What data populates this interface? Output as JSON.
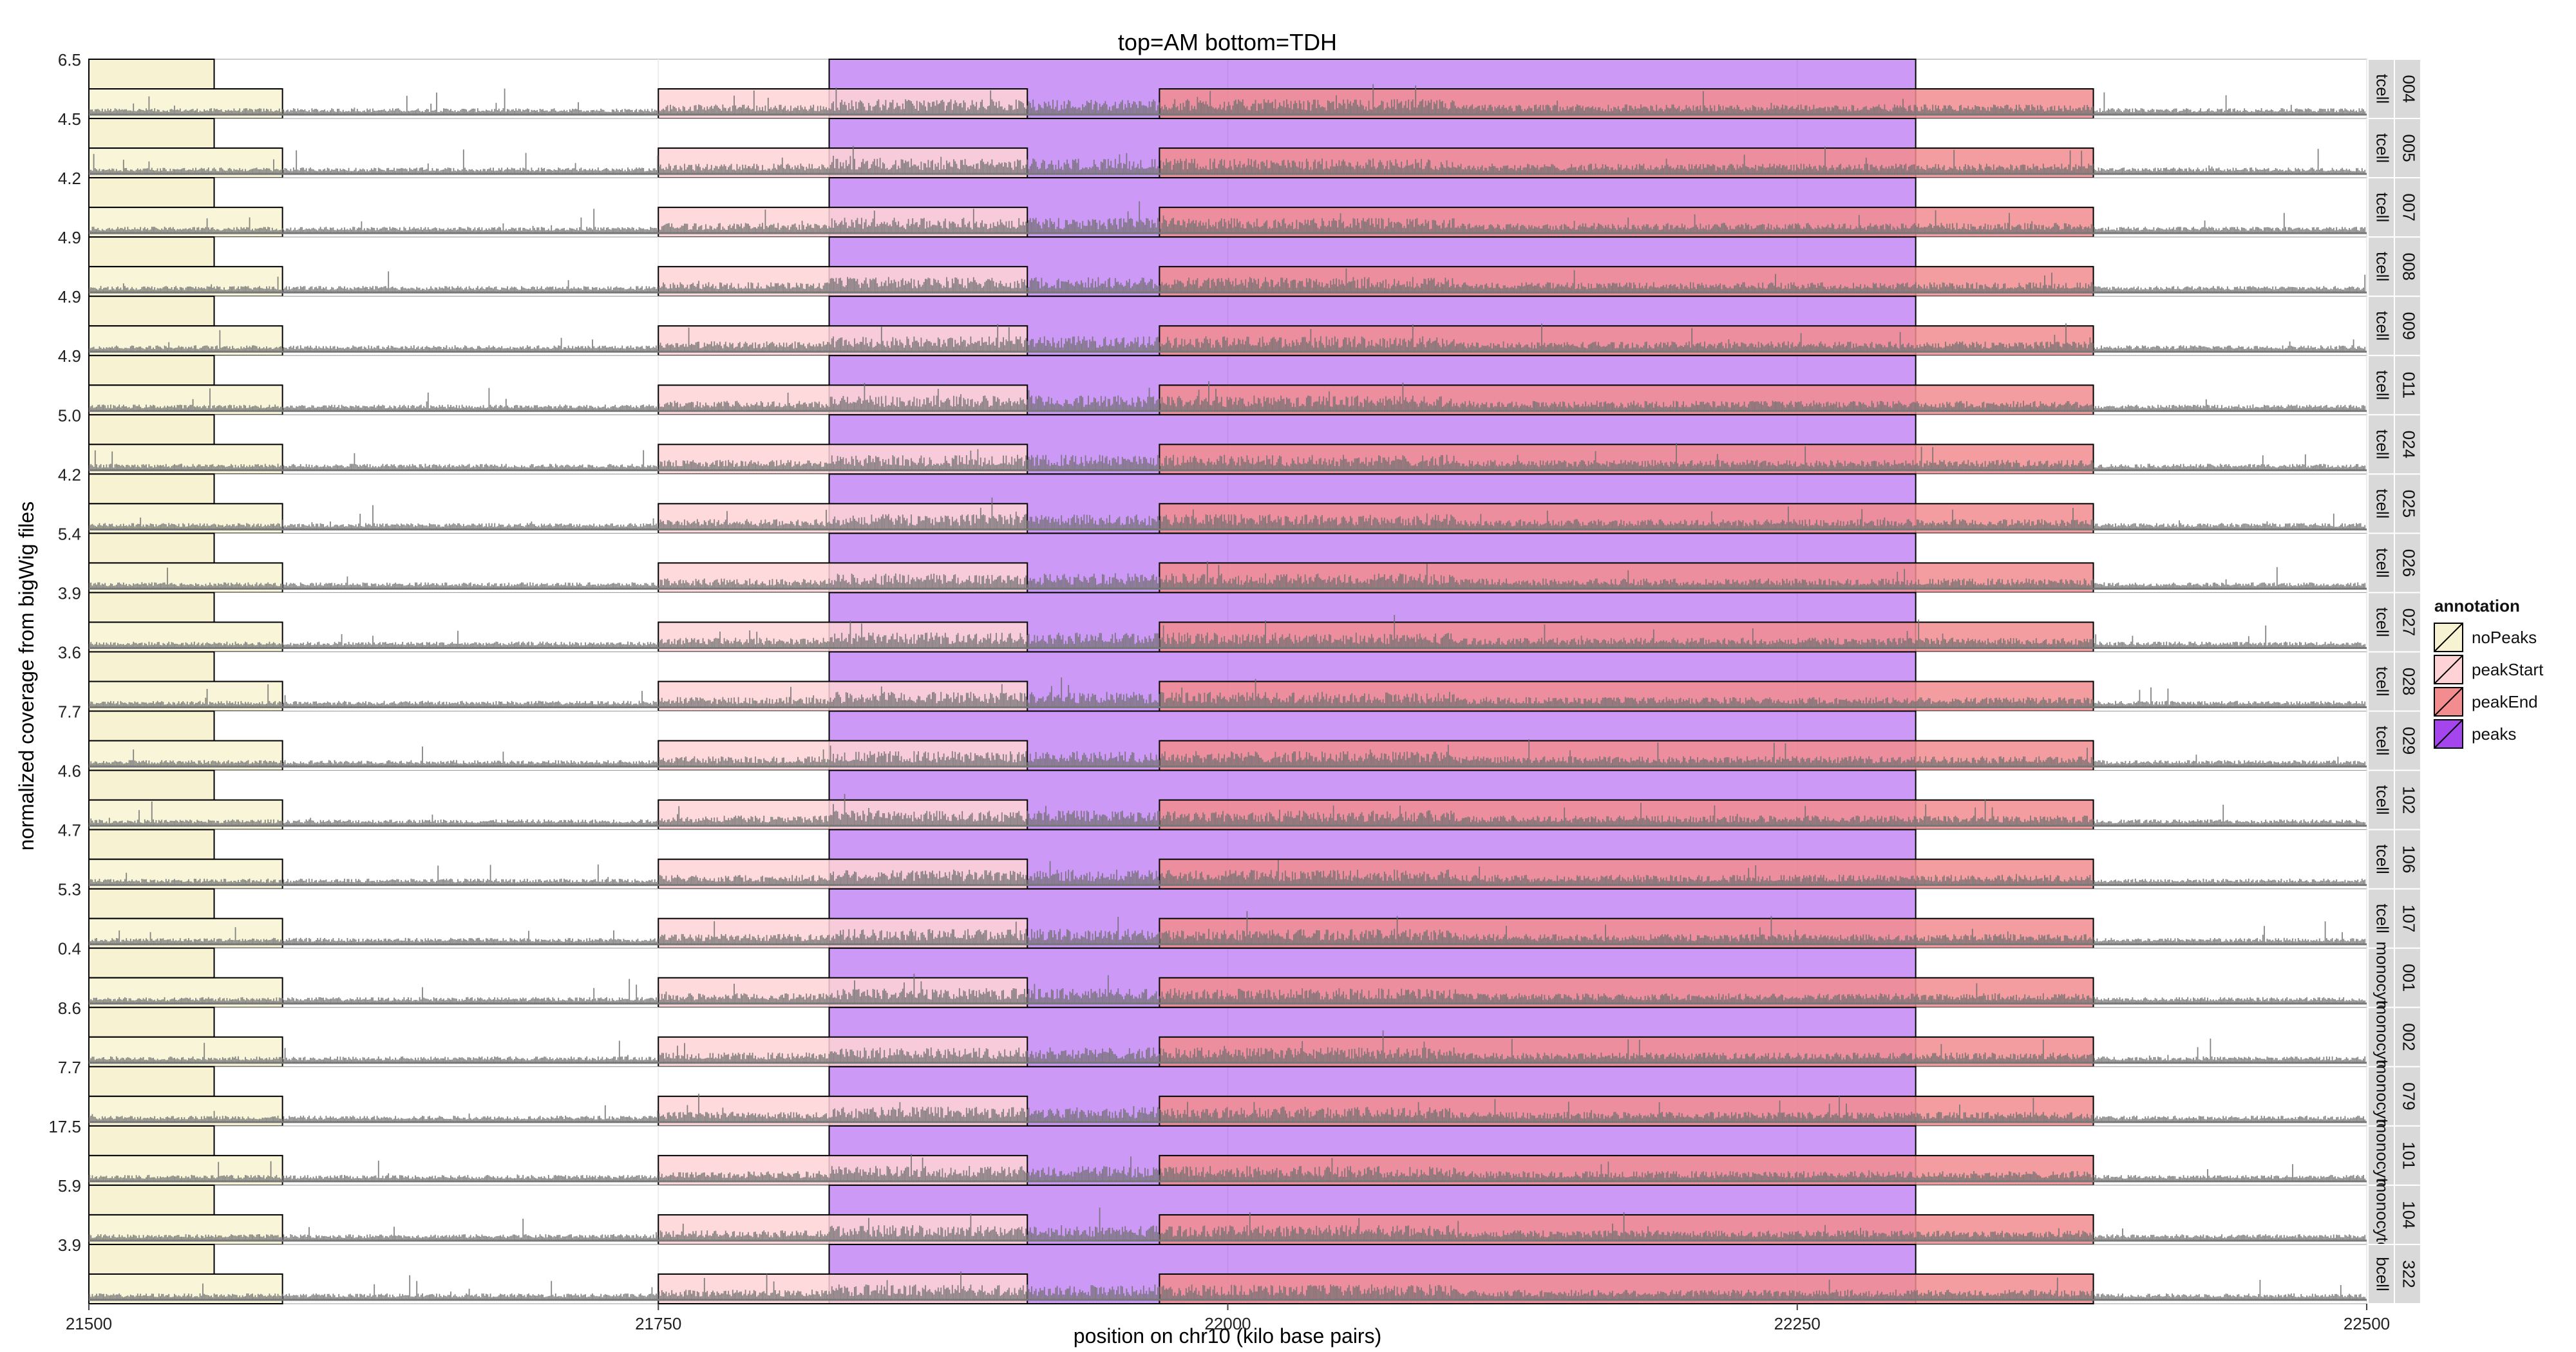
{
  "chart_data": {
    "type": "area",
    "title": "top=AM bottom=TDH",
    "xlabel": "position on chr10 (kilo base pairs)",
    "ylabel": "normalized coverage from bigWig files",
    "xlim": [
      21500,
      22500
    ],
    "x_ticks": [
      21500,
      21750,
      22000,
      22250,
      22500
    ],
    "x_tick_labels": [
      "21500",
      "21750",
      "22000",
      "22250",
      "22500"
    ],
    "annotation_regions_top": [
      {
        "annotation": "noPeaks",
        "start": 21500,
        "end": 21555
      }
    ],
    "annotation_regions_bottom": [
      {
        "annotation": "noPeaks",
        "start": 21500,
        "end": 21585
      },
      {
        "annotation": "peakStart",
        "start": 21750,
        "end": 21912
      },
      {
        "annotation": "peakEnd",
        "start": 21970,
        "end": 22380
      }
    ],
    "peak_region": {
      "annotation": "peaks",
      "start": 21825,
      "end": 22302
    },
    "legend": {
      "title": "annotation",
      "placement": "right",
      "entries": [
        {
          "label": "noPeaks",
          "color": "#f7f3d2"
        },
        {
          "label": "peakStart",
          "color": "#ffd3d6"
        },
        {
          "label": "peakEnd",
          "color": "#f28c8f"
        },
        {
          "label": "peaks",
          "color": "#a445ee"
        }
      ]
    },
    "panels": [
      {
        "sample": "004",
        "cell_type": "tcell",
        "ymax_label": "6.5"
      },
      {
        "sample": "005",
        "cell_type": "tcell",
        "ymax_label": "4.5"
      },
      {
        "sample": "007",
        "cell_type": "tcell",
        "ymax_label": "4.2"
      },
      {
        "sample": "008",
        "cell_type": "tcell",
        "ymax_label": "4.9"
      },
      {
        "sample": "009",
        "cell_type": "tcell",
        "ymax_label": "4.9"
      },
      {
        "sample": "011",
        "cell_type": "tcell",
        "ymax_label": "4.9"
      },
      {
        "sample": "024",
        "cell_type": "tcell",
        "ymax_label": "5.0"
      },
      {
        "sample": "025",
        "cell_type": "tcell",
        "ymax_label": "4.2"
      },
      {
        "sample": "026",
        "cell_type": "tcell",
        "ymax_label": "5.4"
      },
      {
        "sample": "027",
        "cell_type": "tcell",
        "ymax_label": "3.9"
      },
      {
        "sample": "028",
        "cell_type": "tcell",
        "ymax_label": "3.6"
      },
      {
        "sample": "029",
        "cell_type": "tcell",
        "ymax_label": "7.7"
      },
      {
        "sample": "102",
        "cell_type": "tcell",
        "ymax_label": "4.6"
      },
      {
        "sample": "106",
        "cell_type": "tcell",
        "ymax_label": "4.7"
      },
      {
        "sample": "107",
        "cell_type": "tcell",
        "ymax_label": "5.3"
      },
      {
        "sample": "001",
        "cell_type": "monocyte",
        "ymax_label": "0.4"
      },
      {
        "sample": "002",
        "cell_type": "monocyte",
        "ymax_label": "8.6"
      },
      {
        "sample": "079",
        "cell_type": "monocyte",
        "ymax_label": "7.7"
      },
      {
        "sample": "101",
        "cell_type": "monocyte",
        "ymax_label": "17.5"
      },
      {
        "sample": "104",
        "cell_type": "monocyte",
        "ymax_label": "5.9"
      },
      {
        "sample": "322",
        "cell_type": "bcell",
        "ymax_label": "3.9"
      }
    ]
  }
}
